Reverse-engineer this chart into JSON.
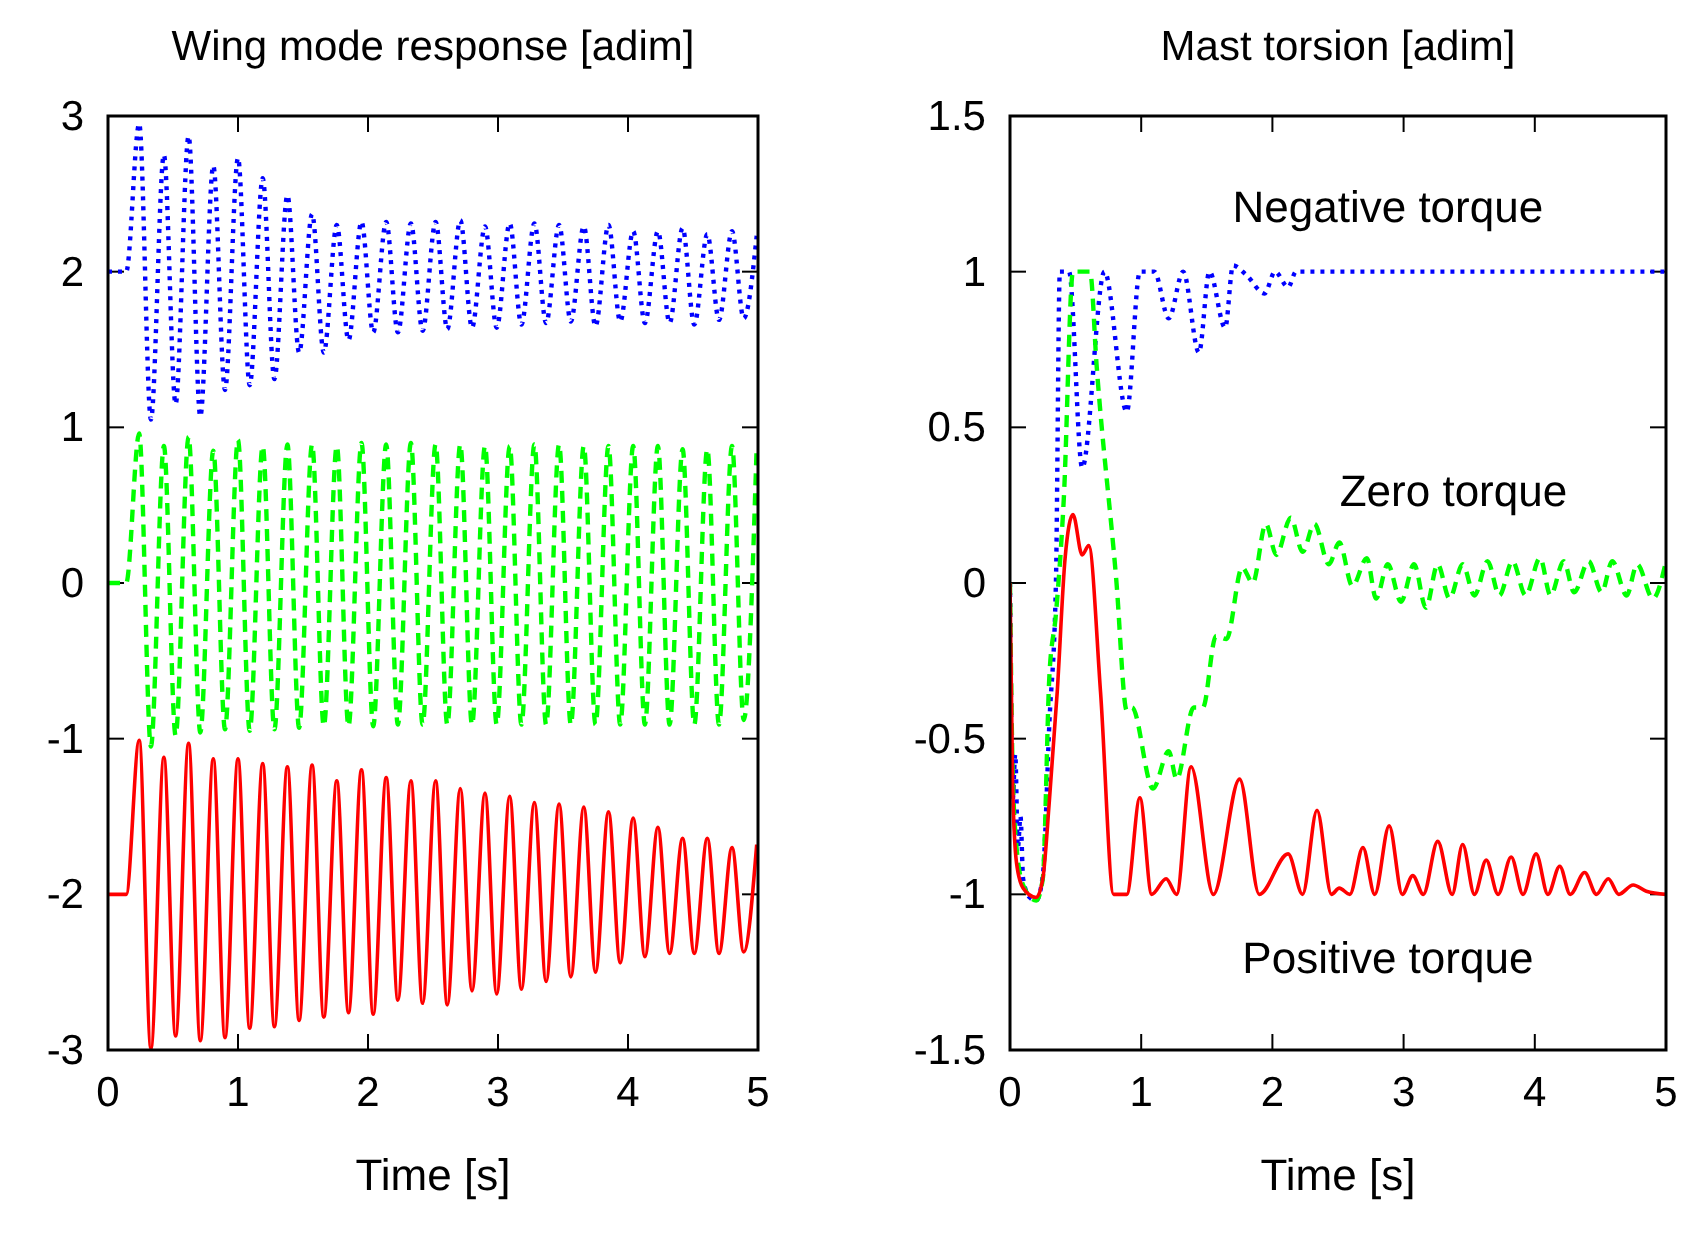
{
  "chart_data": [
    {
      "type": "line",
      "title": "Wing mode response [adim]",
      "xlabel": "Time [s]",
      "xlim": [
        0,
        5
      ],
      "xticks": [
        0,
        1,
        2,
        3,
        4,
        5
      ],
      "ylim": [
        -3,
        3
      ],
      "yticks": [
        -3,
        -2,
        -1,
        0,
        1,
        2,
        3
      ],
      "x": [
        0,
        0.14,
        0.24,
        0.33,
        0.43,
        0.52,
        0.62,
        0.71,
        0.81,
        0.9,
        1.0,
        1.09,
        1.19,
        1.28,
        1.38,
        1.47,
        1.57,
        1.66,
        1.76,
        1.85,
        1.95,
        2.04,
        2.14,
        2.23,
        2.33,
        2.42,
        2.52,
        2.61,
        2.71,
        2.8,
        2.9,
        2.99,
        3.09,
        3.18,
        3.28,
        3.37,
        3.47,
        3.56,
        3.66,
        3.75,
        3.85,
        3.94,
        4.04,
        4.13,
        4.23,
        4.32,
        4.42,
        4.51,
        4.61,
        4.7,
        4.8,
        4.89,
        4.99
      ],
      "series": [
        {
          "color": "#0000ff",
          "line_style": "dotted",
          "values": [
            2,
            2,
            2.95,
            1.05,
            2.75,
            1.15,
            2.87,
            1.07,
            2.68,
            1.24,
            2.73,
            1.27,
            2.6,
            1.31,
            2.49,
            1.48,
            2.37,
            1.48,
            2.3,
            1.56,
            2.32,
            1.61,
            2.32,
            1.61,
            2.31,
            1.62,
            2.32,
            1.63,
            2.33,
            1.64,
            2.29,
            1.64,
            2.31,
            1.66,
            2.31,
            1.67,
            2.3,
            1.68,
            2.29,
            1.65,
            2.3,
            1.68,
            2.26,
            1.67,
            2.26,
            1.67,
            2.28,
            1.66,
            2.24,
            1.69,
            2.26,
            1.7,
            2.23
          ]
        },
        {
          "color": "#00ff00",
          "line_style": "dashed",
          "values": [
            0,
            0,
            0.96,
            -1.05,
            0.88,
            -0.98,
            0.94,
            -0.96,
            0.85,
            -0.94,
            0.92,
            -0.95,
            0.88,
            -0.94,
            0.89,
            -0.93,
            0.89,
            -0.92,
            0.88,
            -0.92,
            0.9,
            -0.92,
            0.89,
            -0.91,
            0.9,
            -0.91,
            0.89,
            -0.91,
            0.89,
            -0.91,
            0.88,
            -0.91,
            0.88,
            -0.91,
            0.89,
            -0.91,
            0.89,
            -0.91,
            0.88,
            -0.91,
            0.88,
            -0.91,
            0.88,
            -0.91,
            0.88,
            -0.91,
            0.86,
            -0.91,
            0.86,
            -0.91,
            0.88,
            -0.88,
            0.88
          ]
        },
        {
          "color": "#ff0000",
          "line_style": "solid",
          "values": [
            -2,
            -2,
            -1.01,
            -2.99,
            -1.12,
            -2.91,
            -1.03,
            -2.94,
            -1.13,
            -2.92,
            -1.13,
            -2.86,
            -1.16,
            -2.85,
            -1.18,
            -2.81,
            -1.17,
            -2.79,
            -1.27,
            -2.76,
            -1.2,
            -2.77,
            -1.25,
            -2.68,
            -1.27,
            -2.7,
            -1.27,
            -2.71,
            -1.32,
            -2.62,
            -1.35,
            -2.64,
            -1.37,
            -2.61,
            -1.41,
            -2.56,
            -1.42,
            -2.53,
            -1.44,
            -2.5,
            -1.47,
            -2.44,
            -1.51,
            -2.4,
            -1.57,
            -2.38,
            -1.64,
            -2.38,
            -1.64,
            -2.38,
            -1.7,
            -2.37,
            -1.68
          ]
        }
      ]
    },
    {
      "type": "line",
      "title": "Mast torsion [adim]",
      "xlabel": "Time [s]",
      "xlim": [
        0,
        5
      ],
      "xticks": [
        0,
        1,
        2,
        3,
        4,
        5
      ],
      "ylim": [
        -1.5,
        1.5
      ],
      "yticks": [
        -1.5,
        -1,
        -0.5,
        0,
        0.5,
        1,
        1.5
      ],
      "legend": false,
      "series": [
        {
          "name": "Negative torque",
          "color": "#0000ff",
          "line_style": "dotted",
          "x": [
            0,
            0.02,
            0.04,
            0.06,
            0.08,
            0.1,
            0.15,
            0.2,
            0.25,
            0.3,
            0.35,
            0.38,
            0.45,
            0.55,
            0.72,
            0.89,
            0.99,
            1.1,
            1.21,
            1.32,
            1.44,
            1.52,
            1.64,
            1.7,
            1.8,
            1.94,
            2.02,
            2.12,
            2.18,
            5
          ],
          "values": [
            0,
            -0.7,
            -0.55,
            -0.85,
            -0.75,
            -0.95,
            -1.01,
            -1.02,
            -0.94,
            -0.45,
            0,
            1,
            1,
            0.37,
            1,
            0.55,
            1,
            1,
            0.85,
            1,
            0.74,
            1,
            0.82,
            1.02,
            0.99,
            0.93,
            1,
            0.95,
            1,
            1
          ]
        },
        {
          "name": "Zero torque",
          "color": "#00ff00",
          "line_style": "dashed",
          "x": [
            0,
            0.02,
            0.05,
            0.1,
            0.2,
            0.25,
            0.3,
            0.35,
            0.41,
            0.48,
            0.61,
            0.66,
            0.81,
            0.89,
            0.93,
            1.09,
            1.21,
            1.27,
            1.4,
            1.47,
            1.57,
            1.65,
            1.77,
            1.85,
            1.95,
            2.03,
            2.14,
            2.23,
            2.32,
            2.43,
            2.51,
            2.61,
            2.72,
            2.79,
            2.88,
            2.98,
            3.08,
            3.17,
            3.26,
            3.35,
            3.45,
            3.54,
            3.64,
            3.73,
            3.83,
            3.93,
            4.04,
            4.12,
            4.22,
            4.3,
            4.41,
            4.51,
            4.59,
            4.7,
            4.78,
            4.9,
            5
          ],
          "values": [
            0,
            -0.6,
            -0.85,
            -0.97,
            -1.02,
            -0.95,
            -0.3,
            -0.1,
            0.27,
            1,
            1,
            0.7,
            0.01,
            -0.41,
            -0.4,
            -0.66,
            -0.54,
            -0.63,
            -0.4,
            -0.4,
            -0.17,
            -0.18,
            0.05,
            0,
            0.19,
            0.09,
            0.21,
            0.1,
            0.19,
            0.06,
            0.13,
            -0.01,
            0.08,
            -0.05,
            0.06,
            -0.06,
            0.06,
            -0.08,
            0.06,
            -0.05,
            0.06,
            -0.04,
            0.07,
            -0.04,
            0.07,
            -0.04,
            0.08,
            -0.04,
            0.07,
            -0.03,
            0.07,
            -0.03,
            0.07,
            -0.04,
            0.06,
            -0.05,
            0.07
          ]
        },
        {
          "name": "Positive torque",
          "color": "#ff0000",
          "line_style": "solid",
          "x": [
            0,
            0.02,
            0.05,
            0.1,
            0.2,
            0.25,
            0.3,
            0.36,
            0.42,
            0.48,
            0.55,
            0.6,
            0.69,
            0.79,
            0.89,
            0.99,
            1.08,
            1.19,
            1.27,
            1.38,
            1.55,
            1.75,
            1.9,
            2.12,
            2.23,
            2.34,
            2.45,
            2.51,
            2.59,
            2.69,
            2.78,
            2.89,
            2.99,
            3.07,
            3.15,
            3.26,
            3.37,
            3.45,
            3.54,
            3.63,
            3.72,
            3.82,
            3.91,
            4.01,
            4.1,
            4.19,
            4.27,
            4.38,
            4.47,
            4.56,
            4.64,
            4.75,
            4.85,
            5
          ],
          "values": [
            0,
            -0.65,
            -0.9,
            -0.98,
            -1.01,
            -0.95,
            -0.7,
            -0.35,
            0.08,
            0.22,
            0.09,
            0.12,
            -0.35,
            -1,
            -1,
            -0.69,
            -1,
            -0.95,
            -1,
            -0.59,
            -1,
            -0.63,
            -1,
            -0.87,
            -1,
            -0.73,
            -1,
            -0.98,
            -1,
            -0.85,
            -1,
            -0.78,
            -1,
            -0.94,
            -1,
            -0.83,
            -1,
            -0.84,
            -1,
            -0.89,
            -1,
            -0.88,
            -1,
            -0.87,
            -1,
            -0.91,
            -1,
            -0.93,
            -1,
            -0.95,
            -1,
            -0.97,
            -0.99,
            -1
          ]
        }
      ]
    }
  ]
}
